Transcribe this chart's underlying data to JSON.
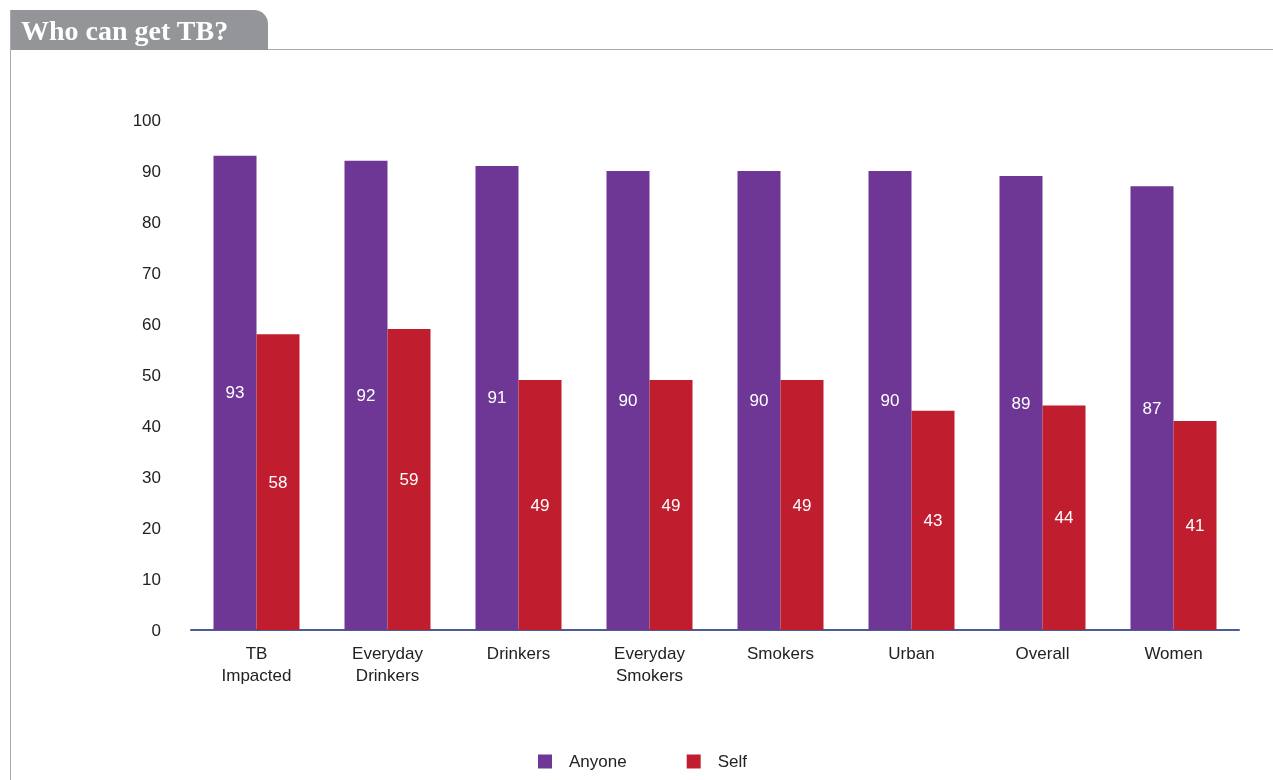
{
  "chart_data": {
    "type": "bar",
    "title": "Who can get TB?",
    "categories": [
      "TB\nImpacted",
      "Everyday\nDrinkers",
      "Drinkers",
      "Everyday\nSmokers",
      "Smokers",
      "Urban",
      "Overall",
      "Women"
    ],
    "series": [
      {
        "name": "Anyone",
        "color": "#6f3795",
        "values": [
          93,
          92,
          91,
          90,
          90,
          90,
          89,
          87
        ]
      },
      {
        "name": "Self",
        "color": "#c01e2e",
        "values": [
          58,
          59,
          49,
          49,
          49,
          43,
          44,
          41
        ]
      }
    ],
    "ylim": [
      0,
      100
    ],
    "yticks": [
      0,
      10,
      20,
      30,
      40,
      50,
      60,
      70,
      80,
      90,
      100
    ],
    "grid": false,
    "legend": "bottom",
    "data_labels": true
  }
}
